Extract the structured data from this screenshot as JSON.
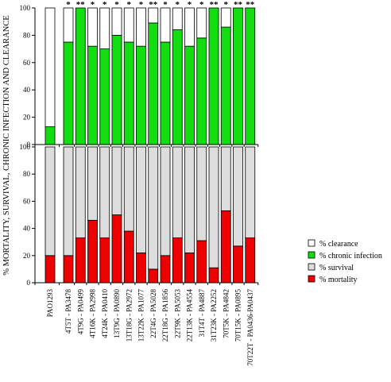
{
  "chart_data": {
    "type": "bar",
    "ylabel": "% MORTALITY, SURVIVAL, CHRONIC INFECTION AND CLEARANCE",
    "categories": [
      "PAO1293",
      "4T5T - PA3478",
      "4T9G - PA0499",
      "4T16K - PA2998",
      "4T24K - PA0410",
      "13T9G - PA0890",
      "13T18G - PA2972",
      "13T22K - PA1077",
      "22T4G - PA5028",
      "22T18G - PA1856",
      "22T9K - PA5053",
      "22T13K - PA4554",
      "31T4T - PA4887",
      "31T23K - PA2252",
      "70T5K - PA4842",
      "70T15K - PA0895",
      "70T22T - PA0436-PA0437"
    ],
    "significance": [
      "",
      "*",
      "**",
      "*",
      "*",
      "*",
      "*",
      "*",
      "**",
      "*",
      "*",
      "*",
      "*",
      "**",
      "*",
      "**",
      "**"
    ],
    "panels": [
      {
        "name": "top",
        "ylim": [
          0,
          100
        ],
        "yticks": [
          "0",
          "20",
          "40",
          "60",
          "80",
          "100"
        ],
        "series": [
          {
            "name": "% chronic infection",
            "color": "#11dd11",
            "values": [
              13,
              75,
              100,
              72,
              70,
              80,
              75,
              72,
              89,
              75,
              84,
              72,
              78,
              100,
              86,
              100,
              100
            ]
          },
          {
            "name": "% clearance",
            "color": "#ffffff",
            "values": [
              87,
              25,
              0,
              28,
              30,
              20,
              25,
              28,
              11,
              25,
              16,
              28,
              22,
              0,
              14,
              0,
              0
            ]
          }
        ]
      },
      {
        "name": "bottom",
        "ylim": [
          0,
          100
        ],
        "yticks": [
          "0",
          "20",
          "40",
          "60",
          "80",
          "100"
        ],
        "series": [
          {
            "name": "% mortality",
            "color": "#ee0000",
            "values": [
              20,
              20,
              33,
              46,
              33,
              50,
              38,
              22,
              10,
              20,
              33,
              22,
              31,
              11,
              53,
              27,
              33
            ]
          },
          {
            "name": "% survival",
            "color": "#dddddd",
            "values": [
              80,
              80,
              67,
              54,
              67,
              50,
              62,
              78,
              90,
              80,
              67,
              78,
              69,
              89,
              47,
              73,
              67
            ]
          }
        ]
      }
    ],
    "legend": {
      "placement": "right",
      "items": [
        {
          "label": "% clearance",
          "color": "#ffffff"
        },
        {
          "label": "% chronic infection",
          "color": "#11dd11"
        },
        {
          "label": "% survival",
          "color": "#dddddd"
        },
        {
          "label": "% mortality",
          "color": "#ee0000"
        }
      ]
    }
  }
}
